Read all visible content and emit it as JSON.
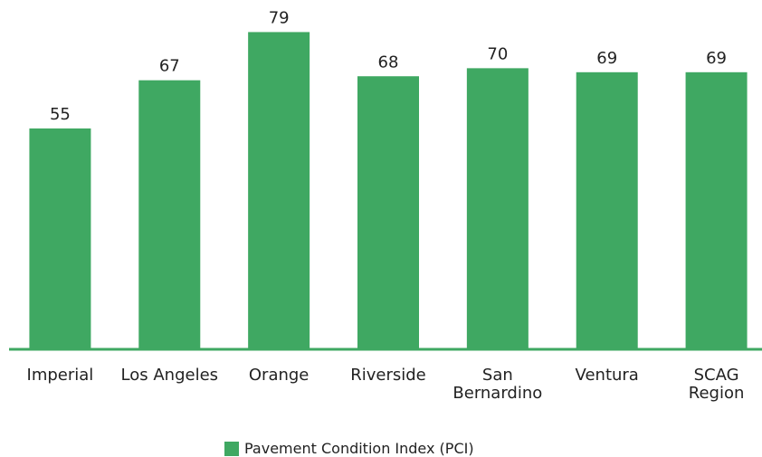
{
  "chart_data": {
    "type": "bar",
    "categories": [
      "Imperial",
      "Los Angeles",
      "Orange",
      "Riverside",
      "San\nBernardino",
      "Ventura",
      "SCAG\nRegion"
    ],
    "series": [
      {
        "name": "Pavement Condition Index (PCI)",
        "color": "#3fa862",
        "values": [
          55,
          67,
          79,
          68,
          70,
          69,
          69
        ]
      }
    ],
    "ylim": [
      0,
      80
    ],
    "legend": "bottom"
  }
}
